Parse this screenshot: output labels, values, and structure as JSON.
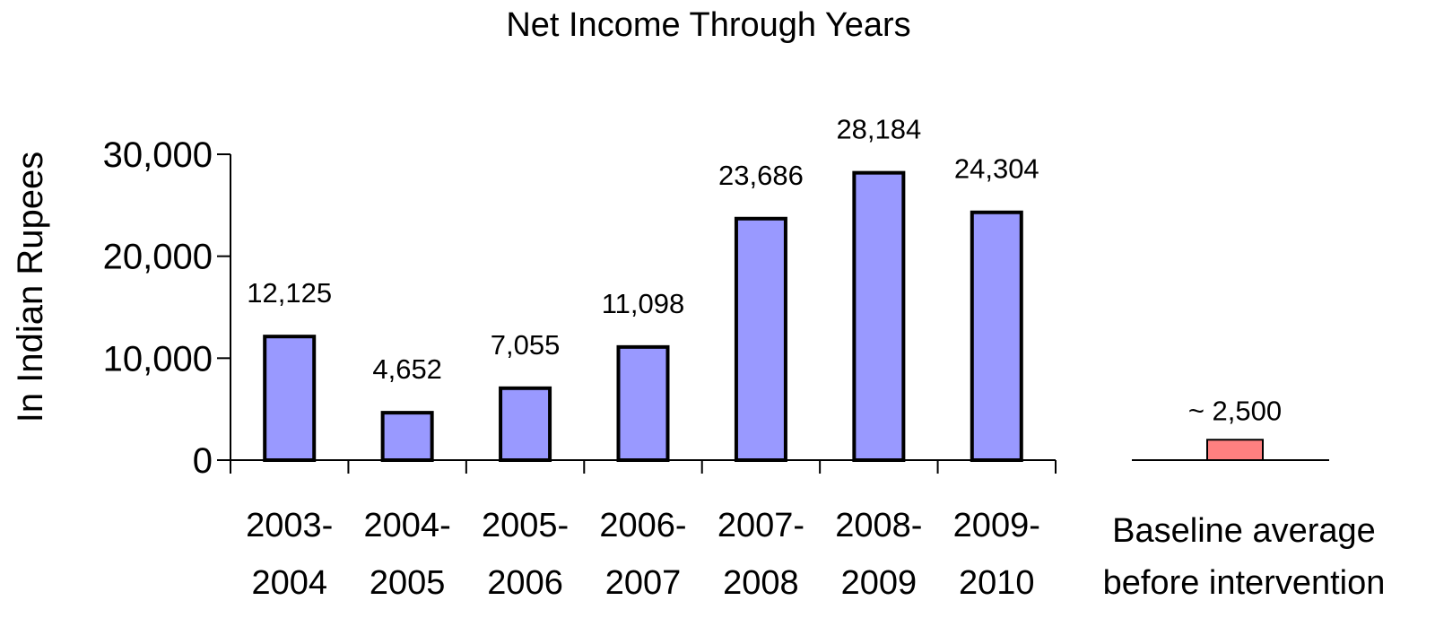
{
  "chart_data": {
    "type": "bar",
    "title": "Net Income Through Years",
    "ylabel": "In Indian Rupees",
    "xlabel": "",
    "ylim": [
      0,
      30000
    ],
    "yticks": [
      0,
      10000,
      20000,
      30000
    ],
    "ytick_labels": [
      "0",
      "10,000",
      "20,000",
      "30,000"
    ],
    "grid": false,
    "legend": "none",
    "categories": [
      [
        "2003-",
        "2004"
      ],
      [
        "2004-",
        "2005"
      ],
      [
        "2005-",
        "2006"
      ],
      [
        "2006-",
        "2007"
      ],
      [
        "2007-",
        "2008"
      ],
      [
        "2008-",
        "2009"
      ],
      [
        "2009-",
        "2010"
      ]
    ],
    "values": [
      12125,
      4652,
      7055,
      11098,
      23686,
      28184,
      24304
    ],
    "value_labels": [
      "12,125",
      "4,652",
      "7,055",
      "11,098",
      "23,686",
      "28,184",
      "24,304"
    ],
    "bar_color": "#9999ff",
    "baseline": {
      "category": [
        "Baseline average",
        "before intervention"
      ],
      "value": 2000,
      "value_label": "~ 2,500",
      "bar_color": "#ff8080"
    }
  }
}
